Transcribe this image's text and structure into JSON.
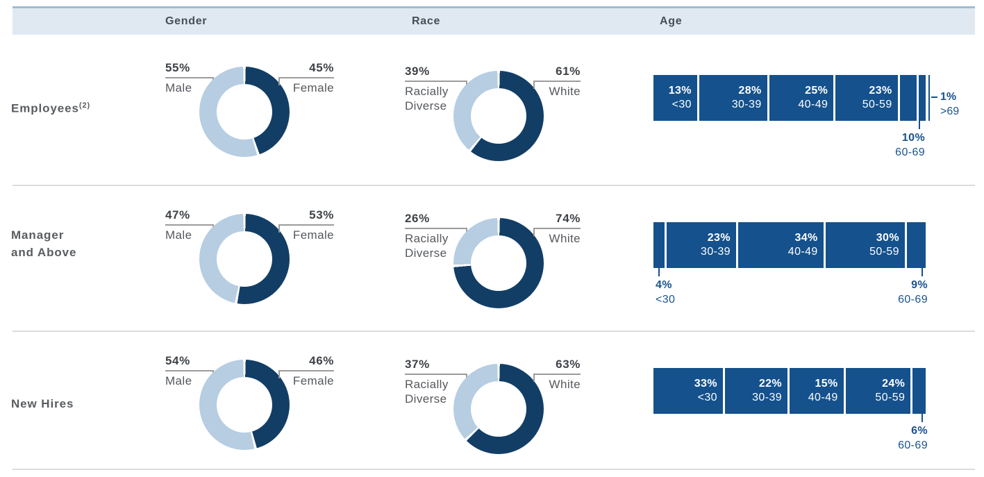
{
  "header": {
    "columns": [
      "Gender",
      "Race",
      "Age"
    ]
  },
  "colors": {
    "donut_dark": "#123e66",
    "donut_light": "#b6cde2",
    "bar_blue": "#15518c",
    "label_blue": "#1a5391",
    "callout_line": "#9b9b9b",
    "header_bg": "#e0e9f2",
    "header_border": "#9fbdd4"
  },
  "chart_data": {
    "type": "table",
    "description": "Workforce demographics: gender and race donut charts plus age stacked bars per employee group",
    "rows": [
      {
        "label": {
          "line1": "Employees",
          "sup": "(2)",
          "line2": ""
        },
        "gender": {
          "type": "pie",
          "series": [
            {
              "name": "Male",
              "pct": "55%",
              "value": 55
            },
            {
              "name": "Female",
              "pct": "45%",
              "value": 45
            }
          ]
        },
        "race": {
          "type": "pie",
          "series": [
            {
              "name": "Racially Diverse",
              "pct": "39%",
              "value": 39
            },
            {
              "name": "White",
              "pct": "61%",
              "value": 61
            }
          ]
        },
        "age": {
          "type": "bar",
          "segments": [
            {
              "pct": "13%",
              "range": "<30",
              "value": 13,
              "label": "inside"
            },
            {
              "pct": "28%",
              "range": "30-39",
              "value": 28,
              "label": "inside"
            },
            {
              "pct": "25%",
              "range": "40-49",
              "value": 25,
              "label": "inside"
            },
            {
              "pct": "23%",
              "range": "50-59",
              "value": 23,
              "label": "inside"
            },
            {
              "pct": "10%",
              "range": "60-69",
              "value": 10,
              "label": "below"
            },
            {
              "pct": "1%",
              "range": ">69",
              "value": 1,
              "label": "right"
            }
          ]
        }
      },
      {
        "label": {
          "line1": "Manager",
          "sup": "",
          "line2": "and Above"
        },
        "gender": {
          "type": "pie",
          "series": [
            {
              "name": "Male",
              "pct": "47%",
              "value": 47
            },
            {
              "name": "Female",
              "pct": "53%",
              "value": 53
            }
          ]
        },
        "race": {
          "type": "pie",
          "series": [
            {
              "name": "Racially Diverse",
              "pct": "26%",
              "value": 26
            },
            {
              "name": "White",
              "pct": "74%",
              "value": 74
            }
          ]
        },
        "age": {
          "type": "bar",
          "segments": [
            {
              "pct": "4%",
              "range": "<30",
              "value": 4,
              "label": "below"
            },
            {
              "pct": "23%",
              "range": "30-39",
              "value": 23,
              "label": "inside"
            },
            {
              "pct": "34%",
              "range": "40-49",
              "value": 34,
              "label": "inside"
            },
            {
              "pct": "30%",
              "range": "50-59",
              "value": 30,
              "label": "inside"
            },
            {
              "pct": "9%",
              "range": "60-69",
              "value": 9,
              "label": "below"
            }
          ]
        }
      },
      {
        "label": {
          "line1": "New Hires",
          "sup": "",
          "line2": ""
        },
        "gender": {
          "type": "pie",
          "series": [
            {
              "name": "Male",
              "pct": "54%",
              "value": 54
            },
            {
              "name": "Female",
              "pct": "46%",
              "value": 46
            }
          ]
        },
        "race": {
          "type": "pie",
          "series": [
            {
              "name": "Racially Diverse",
              "pct": "37%",
              "value": 37
            },
            {
              "name": "White",
              "pct": "63%",
              "value": 63
            }
          ]
        },
        "age": {
          "type": "bar",
          "segments": [
            {
              "pct": "33%",
              "range": "<30",
              "value": 33,
              "label": "inside"
            },
            {
              "pct": "22%",
              "range": "30-39",
              "value": 22,
              "label": "inside"
            },
            {
              "pct": "15%",
              "range": "40-49",
              "value": 15,
              "label": "inside"
            },
            {
              "pct": "24%",
              "range": "50-59",
              "value": 24,
              "label": "inside"
            },
            {
              "pct": "6%",
              "range": "60-69",
              "value": 6,
              "label": "below"
            }
          ]
        }
      }
    ]
  }
}
